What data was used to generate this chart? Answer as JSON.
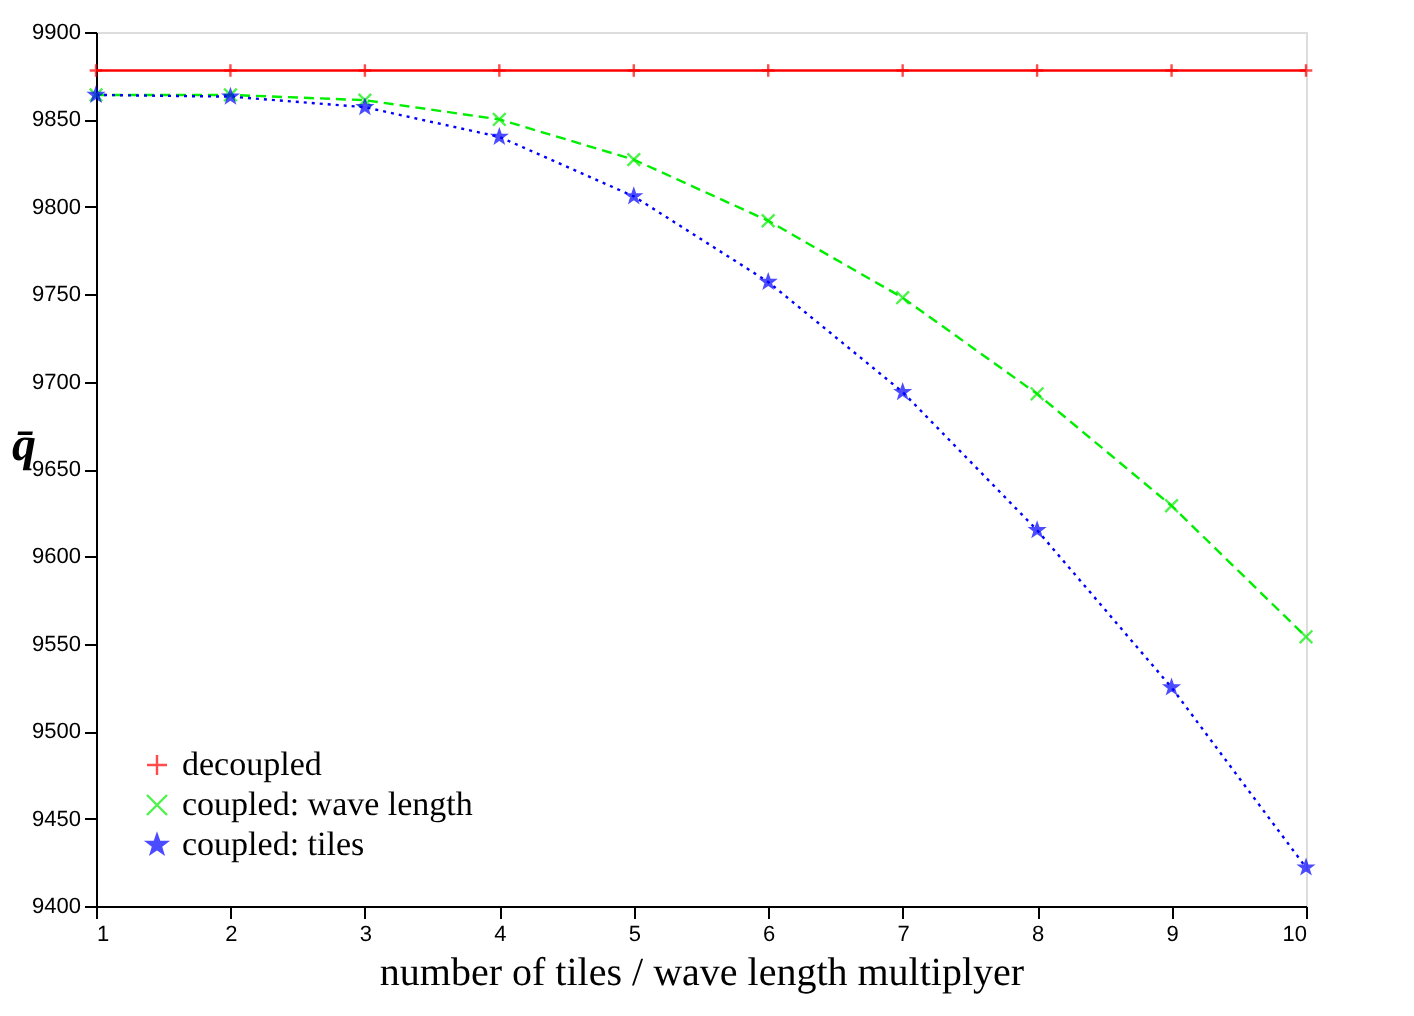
{
  "chart_data": {
    "type": "line",
    "xlabel": "number of tiles / wave length multiplyer",
    "ylabel": "q̄",
    "x": [
      1,
      2,
      3,
      4,
      5,
      6,
      7,
      8,
      9,
      10
    ],
    "series": [
      {
        "name": "decoupled",
        "color": "#ff0000",
        "marker": "cross",
        "line_style": "solid",
        "values": [
          9878,
          9878,
          9878,
          9878,
          9878,
          9878,
          9878,
          9878,
          9878,
          9878
        ]
      },
      {
        "name": "coupled: wave length",
        "color": "#00ee00",
        "marker": "x",
        "line_style": "dashed",
        "values": [
          9864,
          9864,
          9861,
          9850,
          9827,
          9792,
          9748,
          9693,
          9629,
          9554
        ]
      },
      {
        "name": "coupled: tiles",
        "color": "#0000ff",
        "marker": "star",
        "line_style": "dotted",
        "values": [
          9864,
          9863,
          9857,
          9840,
          9806,
          9757,
          9694,
          9615,
          9525,
          9422
        ]
      }
    ],
    "xlim": [
      1,
      10
    ],
    "xticks": [
      1,
      2,
      3,
      4,
      5,
      6,
      7,
      8,
      9,
      10
    ],
    "ylim": [
      9400,
      9900
    ],
    "yticks": [
      9400,
      9450,
      9500,
      9550,
      9600,
      9650,
      9700,
      9750,
      9800,
      9850,
      9900
    ],
    "grid": false,
    "legend": "bottom left"
  }
}
